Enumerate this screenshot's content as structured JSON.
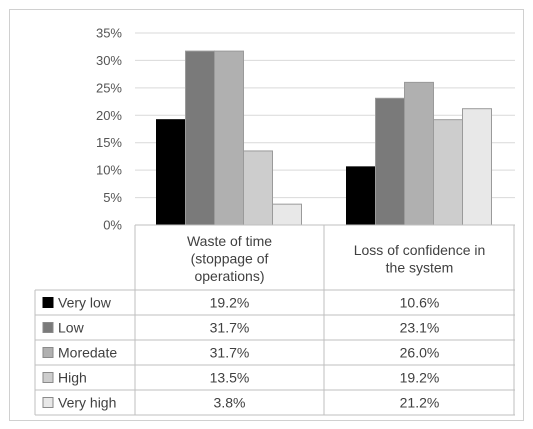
{
  "chart_data": {
    "type": "bar",
    "categories": [
      [
        "Waste of time",
        "(stoppage of",
        "operations)"
      ],
      [
        "Loss of confidence in",
        "the system"
      ]
    ],
    "series": [
      {
        "name": "Very low",
        "values": [
          19.2,
          10.6
        ],
        "labels": [
          "19.2%",
          "10.6%"
        ],
        "color": "#000000"
      },
      {
        "name": "Low",
        "values": [
          31.7,
          23.1
        ],
        "labels": [
          "31.7%",
          "23.1%"
        ],
        "color": "#7a7a7a"
      },
      {
        "name": "Moredate",
        "values": [
          31.7,
          26.0
        ],
        "labels": [
          "31.7%",
          "26.0%"
        ],
        "color": "#b0b0b0"
      },
      {
        "name": "High",
        "values": [
          13.5,
          19.2
        ],
        "labels": [
          "13.5%",
          "19.2%"
        ],
        "color": "#cdcdcd"
      },
      {
        "name": "Very high",
        "values": [
          3.8,
          21.2
        ],
        "labels": [
          "3.8%",
          "21.2%"
        ],
        "color": "#e8e8e8"
      }
    ],
    "yticks": [
      "0%",
      "5%",
      "10%",
      "15%",
      "20%",
      "25%",
      "30%",
      "35%"
    ],
    "ylim": [
      0,
      35
    ],
    "grid": true,
    "legend": "data-table"
  }
}
